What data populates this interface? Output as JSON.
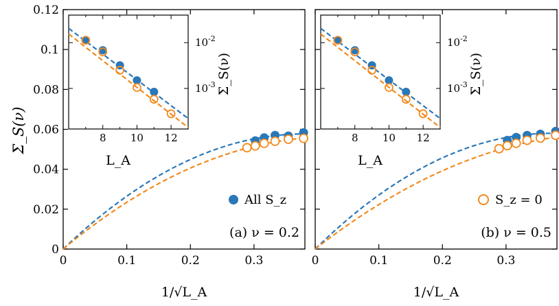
{
  "colors": {
    "all": "#2a78b8",
    "sz0": "#f28a1e",
    "axis": "#000000"
  },
  "axes_text": {
    "ylabel": "Σ_S(ν)",
    "xlabel": "1/√L_A",
    "inset_xlabel": "L_A",
    "inset_ylabel": "Σ_S(ν)"
  },
  "legend": {
    "all_label": "All S_z",
    "sz0_label": "S_z = 0"
  },
  "chart_data": [
    {
      "type": "scatter",
      "panel_label": "(a) ν = 0.2",
      "xlabel": "1/√L_A",
      "ylabel": "Σ_S(ν)",
      "xlim": [
        0,
        0.38
      ],
      "ylim": [
        0,
        0.12
      ],
      "xticks": [
        "0",
        "0.1",
        "0.2",
        "0.3"
      ],
      "yticks": [
        "0",
        "0.02",
        "0.04",
        "0.06",
        "0.08",
        "0.1",
        "0.12"
      ],
      "legend_position": "bottom-right",
      "series": [
        {
          "name": "All S_z",
          "marker": "filled-circle",
          "x": [
            0.378,
            0.354,
            0.333,
            0.316,
            0.302
          ],
          "y": [
            0.0583,
            0.0567,
            0.057,
            0.0558,
            0.0543
          ],
          "fit": {
            "style": "dashed",
            "form": "a0 + a1*x + a2*x^2",
            "coeffs": [
              0,
              0.3052,
              -0.4037
            ]
          }
        },
        {
          "name": "S_z = 0",
          "marker": "open-circle",
          "x": [
            0.378,
            0.354,
            0.333,
            0.316,
            0.302,
            0.289
          ],
          "y": [
            0.0555,
            0.055,
            0.054,
            0.053,
            0.0517,
            0.0508
          ],
          "fit": {
            "style": "dashed",
            "form": "a0 + a1*x + a2*x^2",
            "coeffs": [
              0,
              0.2656,
              -0.3135
            ]
          }
        }
      ],
      "inset": {
        "xlabel": "L_A",
        "ylabel": "Σ_S(ν)",
        "yscale": "log",
        "xlim": [
          6,
          13
        ],
        "ylim": [
          0.00013,
          0.04
        ],
        "xticks": [
          "8",
          "10",
          "12"
        ],
        "yticks": [
          "10^-2",
          "10^-3"
        ],
        "series": [
          {
            "name": "All S_z",
            "x": [
              7,
              8,
              9,
              10,
              11
            ],
            "y": [
              0.0113,
              0.0068,
              0.0032,
              0.0015,
              0.00084
            ],
            "fit": {
              "style": "dashed",
              "x": [
                6,
                13
              ],
              "y": [
                0.0205,
                0.00022
              ]
            }
          },
          {
            "name": "S_z = 0",
            "x": [
              7,
              8,
              9,
              10,
              11,
              12
            ],
            "y": [
              0.0113,
              0.0063,
              0.0025,
              0.00105,
              0.00058,
              0.00028
            ],
            "fit": {
              "style": "dashed",
              "x": [
                6,
                13
              ],
              "y": [
                0.0155,
                0.00014
              ]
            }
          }
        ]
      }
    },
    {
      "type": "scatter",
      "panel_label": "(b) ν = 0.5",
      "xlabel": "1/√L_A",
      "xlim": [
        0,
        0.38
      ],
      "ylim": [
        0,
        0.12
      ],
      "xticks": [
        "0",
        "0.1",
        "0.2",
        "0.3"
      ],
      "legend_position": "bottom-right",
      "series": [
        {
          "name": "All S_z",
          "marker": "filled-circle",
          "x": [
            0.378,
            0.354,
            0.333,
            0.316,
            0.302
          ],
          "y": [
            0.059,
            0.0576,
            0.057,
            0.056,
            0.0545
          ],
          "fit": {
            "style": "dashed",
            "form": "a0 + a1*x + a2*x^2",
            "coeffs": [
              0,
              0.3128,
              -0.4216
            ]
          }
        },
        {
          "name": "S_z = 0",
          "marker": "open-circle",
          "x": [
            0.378,
            0.354,
            0.333,
            0.316,
            0.302,
            0.289
          ],
          "y": [
            0.057,
            0.0556,
            0.0545,
            0.053,
            0.0518,
            0.0503
          ],
          "fit": {
            "style": "dashed",
            "form": "a0 + a1*x + a2*x^2",
            "coeffs": [
              0,
              0.2498,
              -0.2683
            ]
          }
        }
      ],
      "inset": {
        "xlabel": "L_A",
        "ylabel": "Σ_S(ν)",
        "yscale": "log",
        "xlim": [
          6,
          13
        ],
        "ylim": [
          0.00013,
          0.04
        ],
        "xticks": [
          "8",
          "10",
          "12"
        ],
        "yticks": [
          "10^-2",
          "10^-3"
        ],
        "series": [
          {
            "name": "All S_z",
            "x": [
              7,
              8,
              9,
              10,
              11
            ],
            "y": [
              0.0113,
              0.0068,
              0.0032,
              0.0015,
              0.00084
            ],
            "fit": {
              "style": "dashed",
              "x": [
                6,
                13
              ],
              "y": [
                0.0205,
                0.00022
              ]
            }
          },
          {
            "name": "S_z = 0",
            "x": [
              7,
              8,
              9,
              10,
              11,
              12
            ],
            "y": [
              0.0113,
              0.0063,
              0.0025,
              0.00105,
              0.00058,
              0.00028
            ],
            "fit": {
              "style": "dashed",
              "x": [
                6,
                13
              ],
              "y": [
                0.0155,
                0.00014
              ]
            }
          }
        ]
      }
    }
  ]
}
